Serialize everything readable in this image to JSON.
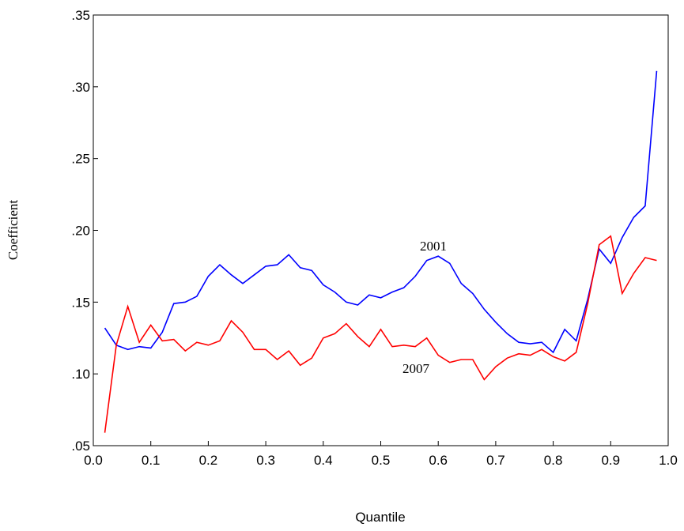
{
  "chart_data": {
    "type": "line",
    "x_label": "Quantile",
    "y_label": "Coefficient",
    "x": [
      0.02,
      0.04,
      0.06,
      0.08,
      0.1,
      0.12,
      0.14,
      0.16,
      0.18,
      0.2,
      0.22,
      0.24,
      0.26,
      0.28,
      0.3,
      0.32,
      0.34,
      0.36,
      0.38,
      0.4,
      0.42,
      0.44,
      0.46,
      0.48,
      0.5,
      0.52,
      0.54,
      0.56,
      0.58,
      0.6,
      0.62,
      0.64,
      0.66,
      0.68,
      0.7,
      0.72,
      0.74,
      0.76,
      0.78,
      0.8,
      0.82,
      0.84,
      0.86,
      0.88,
      0.9,
      0.92,
      0.94,
      0.96,
      0.98
    ],
    "series": [
      {
        "name": "2001",
        "color": "#0000ff",
        "values": [
          0.132,
          0.12,
          0.117,
          0.119,
          0.118,
          0.129,
          0.149,
          0.15,
          0.154,
          0.168,
          0.176,
          0.169,
          0.163,
          0.169,
          0.175,
          0.176,
          0.183,
          0.174,
          0.172,
          0.162,
          0.157,
          0.15,
          0.148,
          0.155,
          0.153,
          0.157,
          0.16,
          0.168,
          0.179,
          0.182,
          0.177,
          0.163,
          0.156,
          0.145,
          0.136,
          0.128,
          0.122,
          0.121,
          0.122,
          0.115,
          0.131,
          0.123,
          0.152,
          0.187,
          0.177,
          0.195,
          0.209,
          0.217,
          0.311
        ]
      },
      {
        "name": "2007",
        "color": "#ff0000",
        "values": [
          0.059,
          0.12,
          0.147,
          0.122,
          0.134,
          0.123,
          0.124,
          0.116,
          0.122,
          0.12,
          0.123,
          0.137,
          0.129,
          0.117,
          0.117,
          0.11,
          0.116,
          0.106,
          0.111,
          0.125,
          0.128,
          0.135,
          0.126,
          0.119,
          0.131,
          0.119,
          0.12,
          0.119,
          0.125,
          0.113,
          0.108,
          0.11,
          0.11,
          0.096,
          0.105,
          0.111,
          0.114,
          0.113,
          0.117,
          0.112,
          0.109,
          0.115,
          0.149,
          0.19,
          0.196,
          0.156,
          0.17,
          0.181,
          0.179
        ]
      }
    ],
    "xlim": [
      0,
      1
    ],
    "xticks": [
      {
        "value": 0,
        "label": "0.0"
      },
      0.1,
      0.2,
      0.3,
      0.4,
      0.5,
      0.6,
      0.7,
      0.8,
      0.9,
      {
        "value": 1,
        "label": "1.0"
      }
    ],
    "ylim": [
      0.05,
      0.35
    ],
    "yticks": [
      {
        "value": 0.05,
        "label": ".05"
      },
      {
        "value": 0.1,
        "label": ".10"
      },
      {
        "value": 0.15,
        "label": ".15"
      },
      {
        "value": 0.2,
        "label": ".20"
      },
      {
        "value": 0.25,
        "label": ".25"
      },
      {
        "value": 0.3,
        "label": ".30"
      },
      {
        "value": 0.35,
        "label": ".35"
      }
    ],
    "grid": false
  }
}
